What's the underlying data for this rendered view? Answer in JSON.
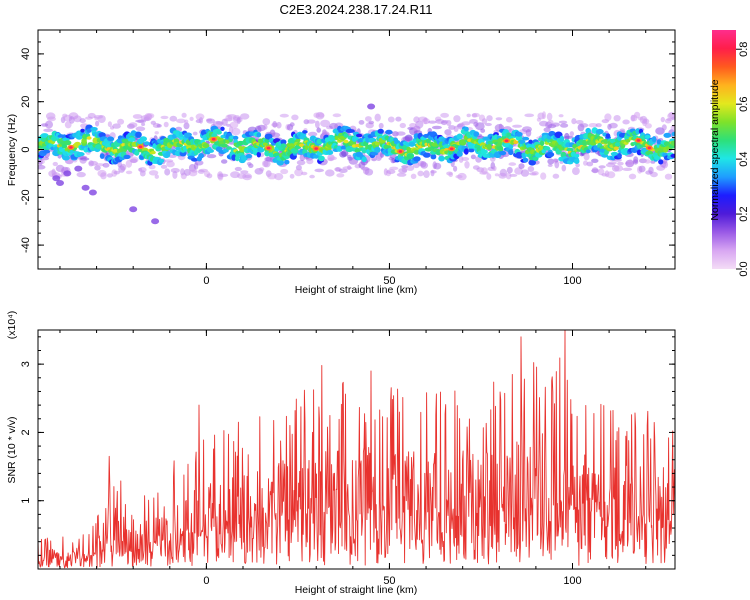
{
  "title": "C2E3.2024.238.17.24.R11",
  "chart_data": [
    {
      "type": "heatmap",
      "xlabel": "Height of straight line (km)",
      "ylabel": "Frequency (Hz)",
      "xlim": [
        -46,
        128
      ],
      "ylim": [
        -50,
        50
      ],
      "x_ticks": [
        0,
        50,
        100
      ],
      "x_tick_labels": [
        "0",
        "50",
        "100"
      ],
      "y_ticks": [
        -40,
        -20,
        0,
        20,
        40
      ],
      "y_tick_labels": [
        "-40",
        "-20",
        "0",
        "20",
        "40"
      ],
      "grid": false,
      "ridge_center_hz": 1.5,
      "ridge_halfwidth_hz": 5,
      "ridge_peak_positions_km": [
        -37,
        -18,
        2,
        17,
        30,
        53,
        67,
        82,
        118,
        121
      ],
      "colorbar": {
        "label": "Normalized spectral amplitude",
        "range": [
          0.0,
          0.87
        ],
        "ticks": [
          0.0,
          0.2,
          0.4,
          0.6,
          0.8
        ],
        "tick_labels": [
          "0.0",
          "0.2",
          "0.4",
          "0.6",
          "0.8"
        ],
        "colormap": [
          "#f4ddf6",
          "#d8a6f2",
          "#9a5ae6",
          "#4e1bd9",
          "#1d1dff",
          "#1f9dff",
          "#1fe6e6",
          "#2de07a",
          "#7fe22a",
          "#e3e81e",
          "#ffb21e",
          "#ff5a1e",
          "#ff1e4a",
          "#ff2d8c"
        ]
      }
    },
    {
      "type": "line",
      "xlabel": "Height of straight line (km)",
      "ylabel": "SNR (10 * v/v)",
      "y_multiplier_label": "(x10⁴)",
      "xlim": [
        -46,
        128
      ],
      "ylim": [
        0,
        3.5
      ],
      "x_ticks": [
        0,
        50,
        100
      ],
      "x_tick_labels": [
        "0",
        "50",
        "100"
      ],
      "y_ticks": [
        1,
        2,
        3
      ],
      "y_tick_labels": [
        "1",
        "2",
        "3"
      ],
      "grid": false,
      "color": "#e8322e",
      "envelope_x": [
        -46,
        -34,
        -28,
        -26,
        -20,
        -15,
        -5,
        5,
        15,
        25,
        35,
        45,
        60,
        75,
        85,
        95,
        105,
        115,
        128
      ],
      "envelope_y": [
        0.5,
        0.5,
        0.9,
        1.6,
        0.9,
        1.2,
        1.9,
        2.1,
        2.3,
        2.6,
        2.75,
        2.8,
        2.6,
        2.7,
        2.9,
        3.2,
        2.5,
        2.4,
        2.3
      ],
      "spikes": [
        {
          "x": -26.5,
          "y": 1.65
        },
        {
          "x": -2,
          "y": 2.4
        },
        {
          "x": 31.5,
          "y": 2.98
        },
        {
          "x": 45,
          "y": 2.9
        },
        {
          "x": 86,
          "y": 3.4
        },
        {
          "x": 98,
          "y": 3.5
        }
      ]
    }
  ]
}
